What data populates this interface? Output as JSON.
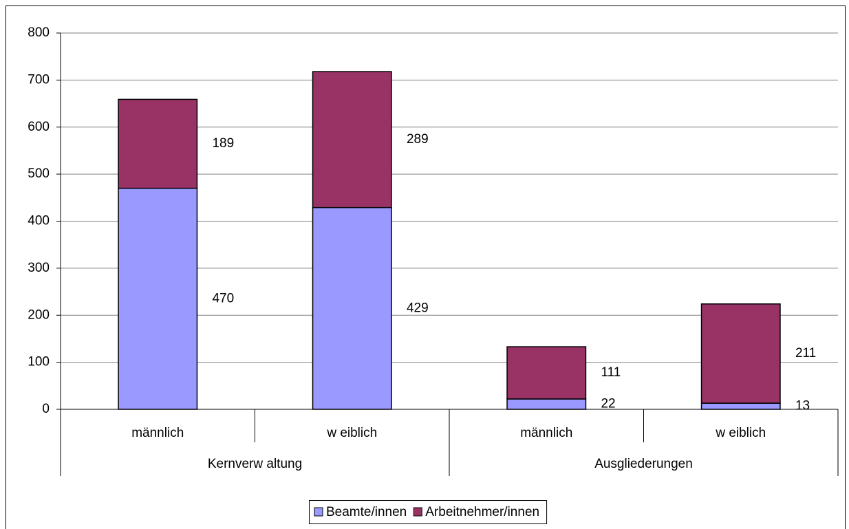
{
  "chart_data": {
    "type": "stacked_bar",
    "categories": [
      "männlich",
      "w eiblich",
      "männlich",
      "w eiblich"
    ],
    "groups": [
      "Kernverw altung",
      "Ausgliederungen"
    ],
    "series": [
      {
        "name": "Beamte/innen",
        "color": "#9999ff",
        "values": [
          470,
          429,
          22,
          13
        ]
      },
      {
        "name": "Arbeitnehmer/innen",
        "color": "#993366",
        "values": [
          189,
          289,
          111,
          211
        ]
      }
    ],
    "ylim": [
      0,
      800
    ],
    "yticks": [
      0,
      100,
      200,
      300,
      400,
      500,
      600,
      700,
      800
    ],
    "grid": true,
    "legend": "bottom"
  }
}
